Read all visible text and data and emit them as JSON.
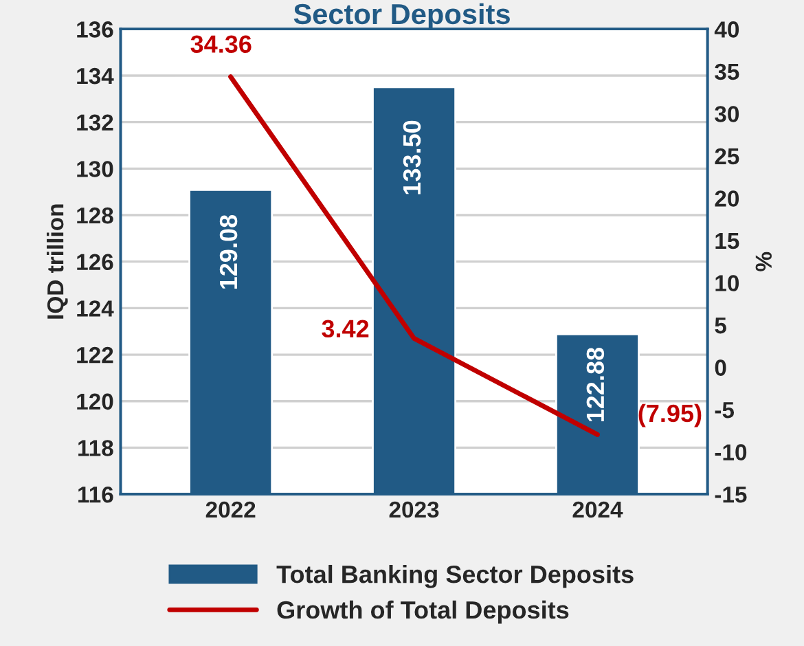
{
  "chart_data": {
    "type": "bar",
    "title": "Sector Deposits",
    "ylabel": "IQD trillion",
    "y2label": "%",
    "categories": [
      "2022",
      "2023",
      "2024"
    ],
    "series": [
      {
        "name": "Total Banking Sector Deposits",
        "color": "#215a85",
        "values": [
          129.08,
          133.5,
          122.88
        ],
        "value_labels": [
          "129.08",
          "133.50",
          "122.88"
        ]
      },
      {
        "name": "Growth of Total Deposits",
        "type": "line",
        "axis": "y2",
        "color": "#c00000",
        "values": [
          34.36,
          3.42,
          -7.95
        ],
        "value_labels": [
          "34.36",
          "3.42",
          "(7.95)"
        ]
      }
    ],
    "ylim": [
      116,
      136
    ],
    "yticks": [
      116,
      118,
      120,
      122,
      124,
      126,
      128,
      130,
      132,
      134,
      136
    ],
    "y2lim": [
      -15,
      40
    ],
    "y2ticks": [
      -15,
      -10,
      -5,
      0,
      5,
      10,
      15,
      20,
      25,
      30,
      35,
      40
    ],
    "grid": "y",
    "legend": "bottom",
    "marker": "none",
    "line_style": "solid"
  }
}
